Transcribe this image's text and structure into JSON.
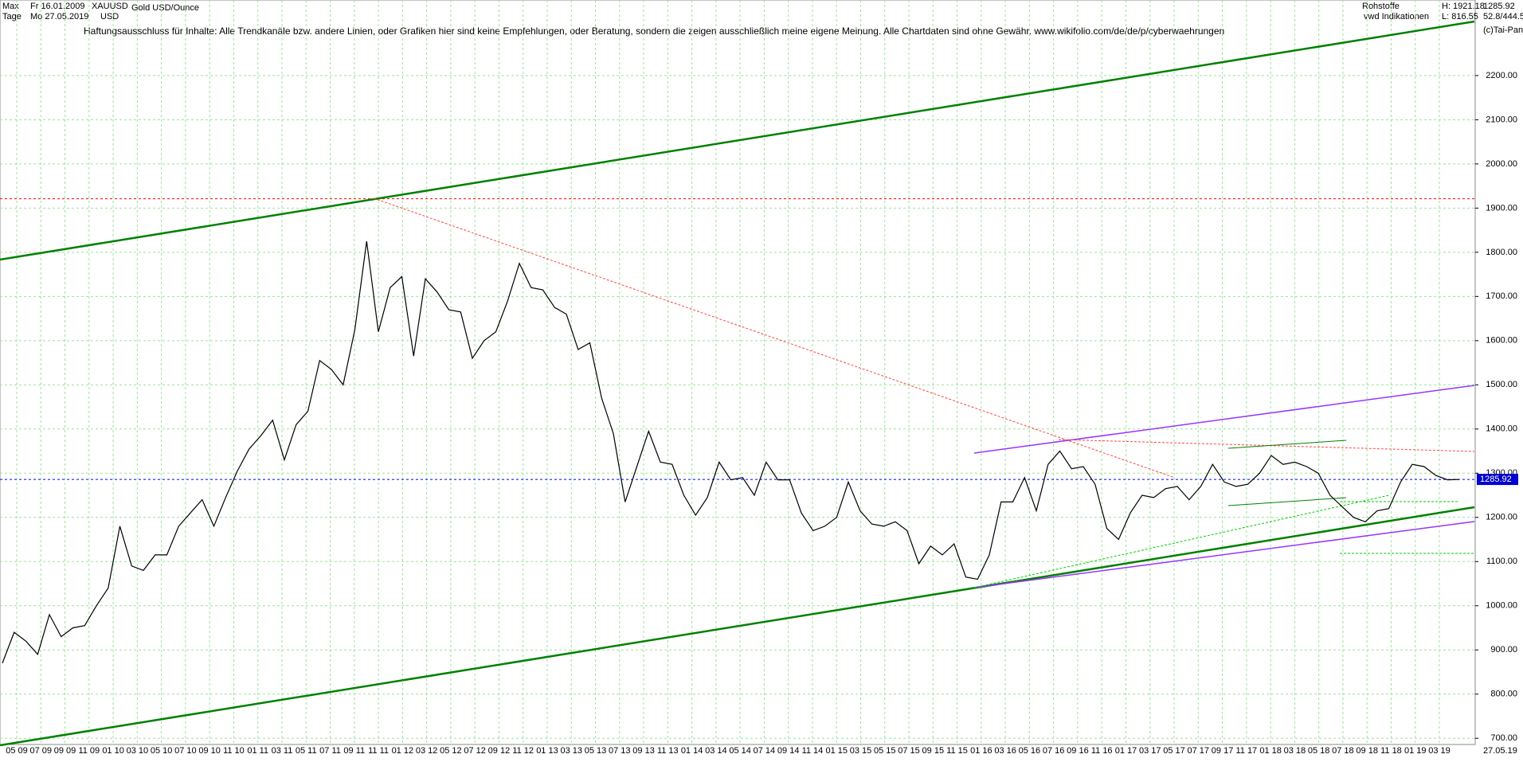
{
  "header": {
    "range": "Max",
    "period": "Tage",
    "start": "Fr 16.01.2009",
    "end": "Mo 27.05.2019",
    "symbol": "XAUUSD",
    "currency": "USD",
    "instrument": "Gold USD/Ounce",
    "disclaimer": "Haftungsausschluss für Inhalte: Alle Trendkanäle bzw. andere Linien, oder Grafiken hier sind keine Empfehlungen, oder Beratung, sondern die zeigen ausschließlich meine eigene Meinung. Alle Chartdaten sind ohne Gewähr.  www.wikifolio.com/de/de/p/cyberwaehrungen",
    "group": "Rohstoffe",
    "source": "vwd Indikationen",
    "last_top": "1285.92",
    "scale_info": "52.8/444.5",
    "copyright": "(c)Tai-Pan"
  },
  "chart_data": {
    "type": "line",
    "color": "#000000",
    "grid": true,
    "high": {
      "value": 1921.18,
      "label": "H: 1921.18"
    },
    "low": {
      "value": 816.55,
      "label": "L: 816.55"
    },
    "current": {
      "value": 1285.92,
      "label": "1285.92"
    },
    "ylim": [
      686,
      2371
    ],
    "yticks": [
      {
        "value": 700,
        "label": "700.00"
      },
      {
        "value": 800,
        "label": "800.00"
      },
      {
        "value": 900,
        "label": "900.00"
      },
      {
        "value": 1000,
        "label": "1000.00"
      },
      {
        "value": 1100,
        "label": "1100.00"
      },
      {
        "value": 1200,
        "label": "1200.00"
      },
      {
        "value": 1300,
        "label": "1300.00"
      },
      {
        "value": 1400,
        "label": "1400.00"
      },
      {
        "value": 1500,
        "label": "1500.00"
      },
      {
        "value": 1600,
        "label": "1600.00"
      },
      {
        "value": 1700,
        "label": "1700.00"
      },
      {
        "value": 1800,
        "label": "1800.00"
      },
      {
        "value": 1900,
        "label": "1900.00"
      },
      {
        "value": 2000,
        "label": "2000.00"
      },
      {
        "value": 2100,
        "label": "2100.00"
      },
      {
        "value": 2200,
        "label": "2200.00"
      }
    ],
    "xticks": [
      "05 09",
      "07 09",
      "09 09",
      "11 09",
      "01 10",
      "03 10",
      "05 10",
      "07 10",
      "09 10",
      "11 10",
      "01 11",
      "03 11",
      "05 11",
      "07 11",
      "09 11",
      "11 11",
      "01 12",
      "03 12",
      "05 12",
      "07 12",
      "09 12",
      "11 12",
      "01 13",
      "03 13",
      "05 13",
      "07 13",
      "09 13",
      "11 13",
      "01 14",
      "03 14",
      "05 14",
      "07 14",
      "09 14",
      "11 14",
      "01 15",
      "03 15",
      "05 15",
      "07 15",
      "09 15",
      "11 15",
      "01 16",
      "03 16",
      "05 16",
      "07 16",
      "09 16",
      "11 16",
      "01 17",
      "03 17",
      "05 17",
      "07 17",
      "09 17",
      "11 17",
      "01 18",
      "03 18",
      "05 18",
      "07 18",
      "09 18",
      "11 18",
      "01 19",
      "03 19"
    ],
    "end_label": "27.05.19",
    "values": [
      870,
      940,
      920,
      890,
      980,
      930,
      950,
      955,
      1000,
      1040,
      1180,
      1090,
      1080,
      1115,
      1115,
      1180,
      1210,
      1240,
      1180,
      1245,
      1305,
      1355,
      1385,
      1420,
      1330,
      1410,
      1440,
      1555,
      1535,
      1500,
      1625,
      1825,
      1620,
      1720,
      1745,
      1565,
      1740,
      1710,
      1670,
      1665,
      1560,
      1600,
      1620,
      1690,
      1775,
      1720,
      1715,
      1675,
      1660,
      1580,
      1595,
      1470,
      1390,
      1235,
      1315,
      1395,
      1325,
      1320,
      1250,
      1205,
      1245,
      1325,
      1285,
      1290,
      1250,
      1325,
      1285,
      1285,
      1210,
      1170,
      1180,
      1200,
      1280,
      1215,
      1185,
      1180,
      1190,
      1170,
      1095,
      1135,
      1115,
      1140,
      1065,
      1060,
      1115,
      1235,
      1235,
      1290,
      1215,
      1320,
      1350,
      1310,
      1315,
      1275,
      1175,
      1150,
      1210,
      1250,
      1245,
      1265,
      1270,
      1240,
      1270,
      1320,
      1280,
      1270,
      1275,
      1300,
      1340,
      1320,
      1325,
      1315,
      1300,
      1250,
      1225,
      1200,
      1190,
      1215,
      1220,
      1280,
      1320,
      1315,
      1295,
      1285,
      1286
    ]
  }
}
